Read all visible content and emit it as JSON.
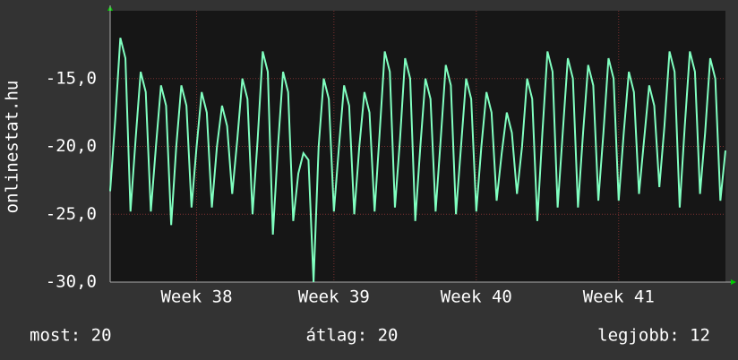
{
  "chart_data": {
    "type": "line",
    "y_label": "onlinestat.hu",
    "categories": [
      null,
      null,
      null,
      null,
      null,
      null,
      null,
      null,
      null,
      null,
      null,
      null,
      null,
      null,
      null,
      null,
      null,
      "Week 38",
      null,
      null,
      null,
      null,
      null,
      null,
      null,
      null,
      null,
      null,
      null,
      null,
      null,
      null,
      null,
      null,
      null,
      null,
      null,
      null,
      null,
      null,
      null,
      null,
      null,
      null,
      "Week 39",
      null,
      null,
      null,
      null,
      null,
      null,
      null,
      null,
      null,
      null,
      null,
      null,
      null,
      null,
      null,
      null,
      null,
      null,
      null,
      null,
      null,
      null,
      null,
      null,
      null,
      null,
      null,
      "Week 40",
      null,
      null,
      null,
      null,
      null,
      null,
      null,
      null,
      null,
      null,
      null,
      null,
      null,
      null,
      null,
      null,
      null,
      null,
      null,
      null,
      null,
      null,
      null,
      null,
      null,
      null,
      null,
      "Week 41",
      null,
      null,
      null,
      null,
      null,
      null,
      null,
      null,
      null,
      null,
      null,
      null,
      null,
      null,
      null,
      null,
      null,
      null,
      null,
      null,
      null
    ],
    "series": [
      {
        "color": "#80ffc0",
        "values": [
          -23.3,
          -18,
          -12,
          -13.5,
          -24.8,
          -19.5,
          -14.5,
          -16,
          -24.8,
          -20,
          -15.5,
          -17,
          -25.8,
          -20,
          -15.5,
          -17,
          -24.5,
          -20,
          -16,
          -17.5,
          -24.5,
          -20,
          -17,
          -18.5,
          -23.5,
          -19.5,
          -15,
          -16.5,
          -25,
          -19.5,
          -13,
          -14.5,
          -26.5,
          -20,
          -14.5,
          -16,
          -25.5,
          -22,
          -20.5,
          -21,
          -30,
          -20,
          -15,
          -16.5,
          -24.8,
          -20,
          -15.5,
          -17,
          -25,
          -20,
          -16,
          -17.5,
          -24.8,
          -19,
          -13,
          -14.5,
          -24.5,
          -19.5,
          -13.5,
          -15,
          -25.5,
          -20,
          -15,
          -16.5,
          -24.8,
          -19.5,
          -14,
          -15.5,
          -25,
          -20,
          -15,
          -16.5,
          -24.8,
          -20,
          -16,
          -17.5,
          -24,
          -20.5,
          -17.5,
          -19,
          -23.5,
          -20,
          -15,
          -16.5,
          -25.5,
          -19,
          -13,
          -14.5,
          -24.5,
          -19,
          -13.5,
          -15,
          -24.5,
          -19,
          -14,
          -15.5,
          -24,
          -19,
          -13.5,
          -15,
          -24,
          -19,
          -14.5,
          -16,
          -23.5,
          -19.5,
          -15.5,
          -17,
          -23,
          -18.5,
          -13,
          -14.5,
          -24.5,
          -18.5,
          -13,
          -14.5,
          -23.5,
          -19,
          -13.5,
          -15,
          -24,
          -20.3
        ]
      }
    ],
    "ylim": [
      -30,
      -10
    ],
    "yticks": [
      {
        "value": -30,
        "label": "-30,0"
      },
      {
        "value": -25,
        "label": "-25,0"
      },
      {
        "value": -20,
        "label": "-20,0"
      },
      {
        "value": -15,
        "label": "-15,0"
      }
    ],
    "grid": true,
    "footer": [
      "most: 20",
      "átlag: 20",
      "legjobb: 12"
    ]
  }
}
